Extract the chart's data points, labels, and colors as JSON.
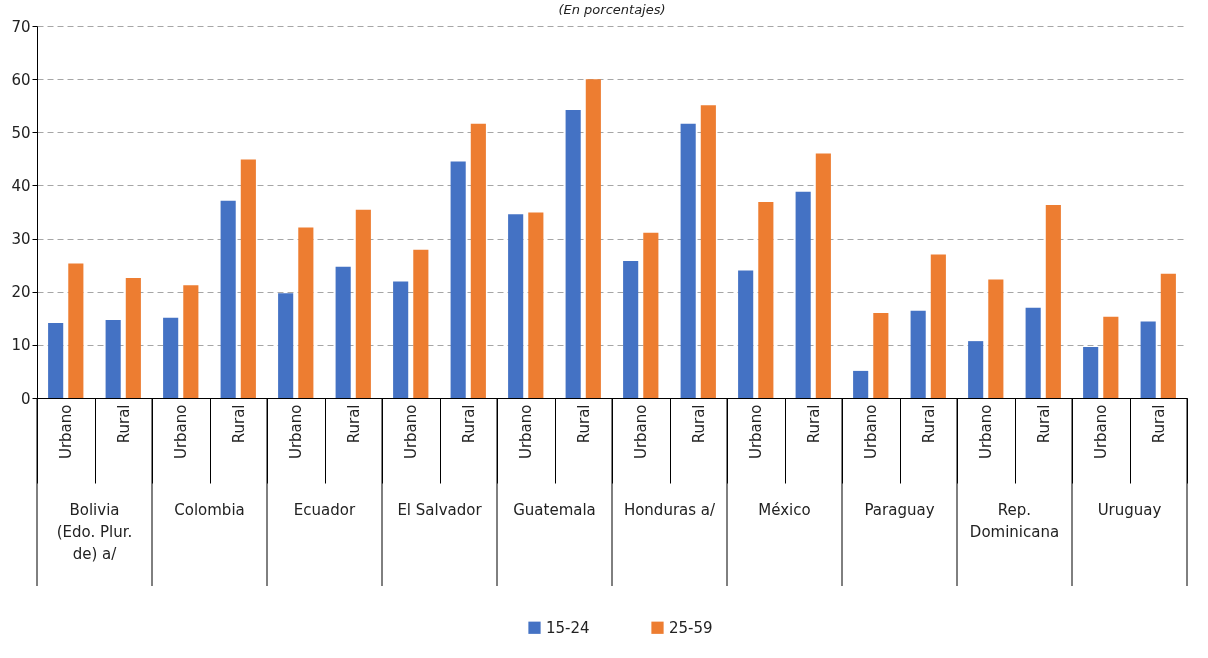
{
  "chart_data": {
    "type": "bar",
    "subtitle": "(En porcentajes)",
    "categories": [
      "Urbano",
      "Rural",
      "Urbano",
      "Rural",
      "Urbano",
      "Rural",
      "Urbano",
      "Rural",
      "Urbano",
      "Rural",
      "Urbano",
      "Rural",
      "Urbano",
      "Rural",
      "Urbano",
      "Rural",
      "Urbano",
      "Rural",
      "Urbano",
      "Rural"
    ],
    "annotations": [
      "Bolivia (Edo. Plur. de) a/",
      "Colombia",
      "Ecuador",
      "El Salvador",
      "Guatemala",
      "Honduras a/",
      "México",
      "Paraguay",
      "Rep. Dominicana",
      "Uruguay"
    ],
    "series": [
      {
        "name": "15-24",
        "color": "#4472c4",
        "values": [
          14.1,
          14.7,
          15.1,
          37.1,
          19.7,
          24.7,
          21.9,
          44.5,
          34.6,
          54.2,
          25.8,
          51.6,
          24.0,
          38.8,
          5.1,
          16.4,
          10.7,
          17.0,
          9.6,
          14.4
        ]
      },
      {
        "name": "25-59",
        "color": "#ed7d31",
        "values": [
          25.3,
          22.6,
          21.2,
          44.9,
          32.1,
          35.4,
          27.9,
          51.6,
          34.9,
          60.0,
          31.1,
          55.1,
          36.9,
          46.0,
          16.0,
          27.0,
          22.3,
          36.3,
          15.3,
          23.4
        ]
      }
    ],
    "ylim": [
      0,
      70
    ],
    "yticks": [
      0,
      10,
      20,
      30,
      40,
      50,
      60,
      70
    ],
    "grid": "y",
    "legend": "bottom"
  }
}
